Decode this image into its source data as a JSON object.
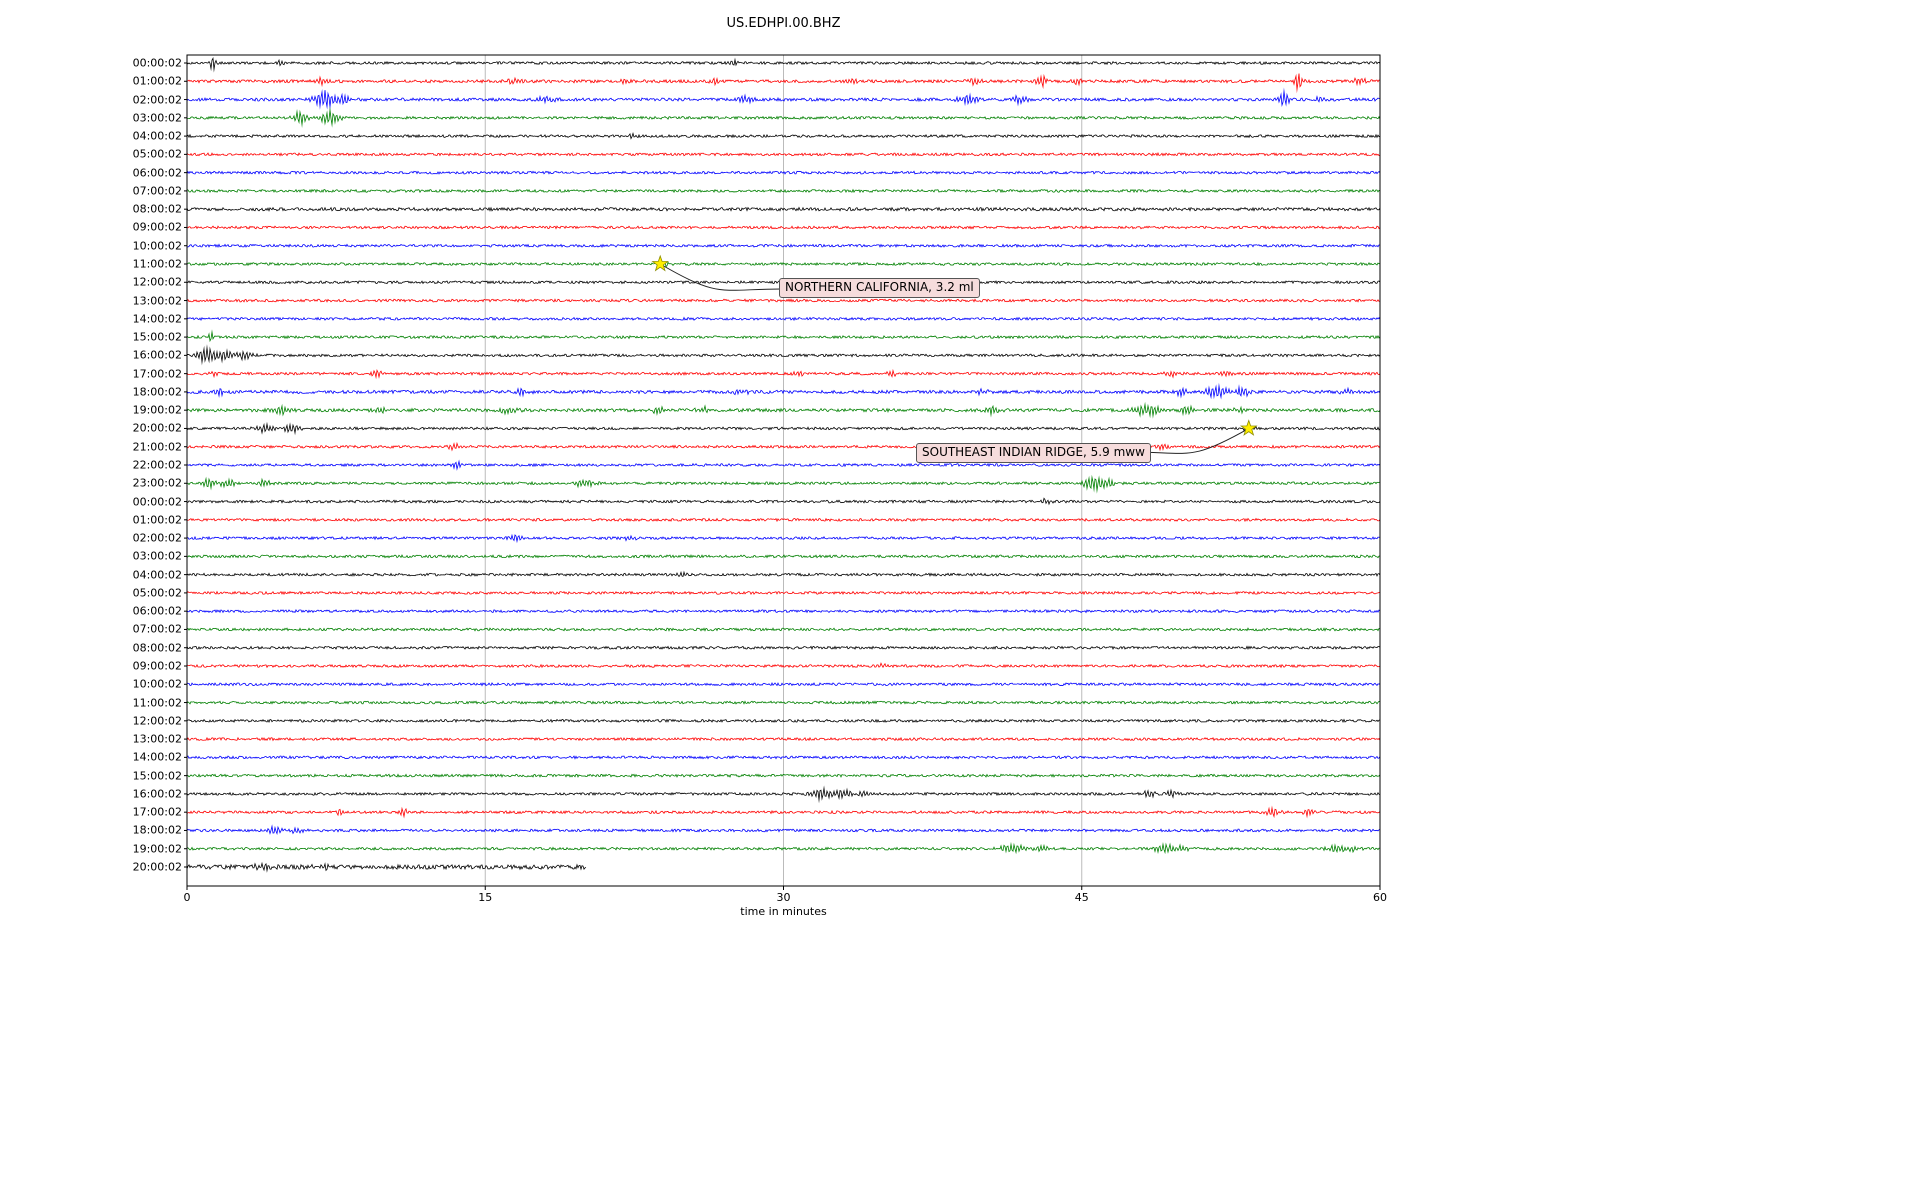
{
  "chart_data": {
    "type": "line",
    "title": "US.EDHPI.00.BHZ",
    "xlabel": "time in minutes",
    "xlim": [
      0,
      60
    ],
    "x_ticks": [
      0,
      15,
      30,
      45,
      60
    ],
    "grid": "on",
    "colors": {
      "trace_cycle": [
        "#000000",
        "#ff0000",
        "#0000ff",
        "#008000"
      ],
      "grid_line": "#bbbbbb",
      "axis_frame": "#000000",
      "star_fill": "#ffee00",
      "star_edge": "#8b8b00",
      "annotation_bg": "#f6dcdc",
      "annotation_border": "#555555"
    },
    "rows": [
      {
        "label": "00:00:02",
        "bursts": [
          [
            1.3,
            7,
            0.15
          ],
          [
            4.6,
            2.5,
            0.3
          ],
          [
            27.5,
            2.5,
            0.2
          ]
        ]
      },
      {
        "label": "01:00:02",
        "base": 1.5,
        "bursts": [
          [
            6.8,
            3,
            0.3
          ],
          [
            16.5,
            3,
            0.4
          ],
          [
            22.0,
            2.5,
            0.3
          ],
          [
            26.6,
            3,
            0.3
          ],
          [
            33.5,
            2.5,
            0.3
          ],
          [
            39.6,
            3.5,
            0.4
          ],
          [
            43.0,
            6,
            0.25
          ],
          [
            44.8,
            4,
            0.3
          ],
          [
            55.9,
            9,
            0.2
          ],
          [
            59.0,
            3,
            0.4
          ]
        ]
      },
      {
        "label": "02:00:02",
        "base": 1.5,
        "bursts": [
          [
            6.9,
            8,
            0.5
          ],
          [
            7.9,
            5,
            0.3
          ],
          [
            18.0,
            3,
            0.5
          ],
          [
            28.0,
            3.5,
            0.4
          ],
          [
            39.3,
            4,
            0.6
          ],
          [
            41.9,
            3.5,
            0.4
          ],
          [
            55.2,
            7,
            0.3
          ],
          [
            57.0,
            3,
            0.3
          ]
        ]
      },
      {
        "label": "03:00:02",
        "bursts": [
          [
            5.7,
            6,
            0.4
          ],
          [
            7.2,
            7,
            0.5
          ]
        ]
      },
      {
        "label": "04:00:02",
        "bursts": [
          [
            22.4,
            2.5,
            0.25
          ]
        ]
      },
      {
        "label": "05:00:02"
      },
      {
        "label": "06:00:02"
      },
      {
        "label": "07:00:02"
      },
      {
        "label": "08:00:02",
        "base": 1.6
      },
      {
        "label": "09:00:02"
      },
      {
        "label": "10:00:02"
      },
      {
        "label": "11:00:02",
        "bursts": [
          [
            24.0,
            2,
            0.3
          ]
        ]
      },
      {
        "label": "12:00:02"
      },
      {
        "label": "13:00:02"
      },
      {
        "label": "14:00:02"
      },
      {
        "label": "15:00:02",
        "bursts": [
          [
            1.2,
            6,
            0.12
          ]
        ]
      },
      {
        "label": "16:00:02",
        "bursts": [
          [
            1.0,
            7,
            0.5
          ],
          [
            1.9,
            5,
            0.4
          ],
          [
            2.9,
            4,
            0.4
          ]
        ]
      },
      {
        "label": "17:00:02",
        "bursts": [
          [
            1.3,
            3,
            0.2
          ],
          [
            9.5,
            4,
            0.3
          ],
          [
            30.8,
            2.5,
            0.3
          ],
          [
            35.5,
            2.5,
            0.3
          ],
          [
            49.5,
            3,
            0.3
          ],
          [
            52.3,
            3,
            0.3
          ]
        ]
      },
      {
        "label": "18:00:02",
        "base": 1.6,
        "bursts": [
          [
            1.6,
            3,
            0.3
          ],
          [
            16.8,
            3,
            0.4
          ],
          [
            27.8,
            2.5,
            0.4
          ],
          [
            40.0,
            3,
            0.4
          ],
          [
            50.0,
            3,
            0.4
          ],
          [
            51.8,
            5,
            0.6
          ],
          [
            53.1,
            4,
            0.4
          ],
          [
            58.3,
            3,
            0.3
          ]
        ]
      },
      {
        "label": "19:00:02",
        "base": 1.6,
        "bursts": [
          [
            4.8,
            4,
            0.5
          ],
          [
            9.7,
            3.5,
            0.4
          ],
          [
            16.2,
            3,
            0.5
          ],
          [
            23.8,
            3.5,
            0.4
          ],
          [
            26.0,
            3,
            0.4
          ],
          [
            40.5,
            4,
            0.4
          ],
          [
            48.3,
            6,
            0.7
          ],
          [
            50.3,
            4,
            0.4
          ],
          [
            53.0,
            3,
            0.3
          ]
        ]
      },
      {
        "label": "20:00:02",
        "bursts": [
          [
            3.9,
            4,
            0.5
          ],
          [
            5.3,
            4,
            0.4
          ],
          [
            53.4,
            2.5,
            0.4
          ]
        ]
      },
      {
        "label": "21:00:02",
        "bursts": [
          [
            13.5,
            3.5,
            0.3
          ],
          [
            49.0,
            3,
            0.3
          ]
        ]
      },
      {
        "label": "22:00:02",
        "bursts": [
          [
            13.6,
            3,
            0.25
          ]
        ]
      },
      {
        "label": "23:00:02",
        "bursts": [
          [
            1.1,
            4,
            0.4
          ],
          [
            2.1,
            4,
            0.4
          ],
          [
            3.9,
            3.5,
            0.3
          ],
          [
            20.0,
            4,
            0.5
          ],
          [
            45.6,
            7,
            0.5
          ],
          [
            46.4,
            4,
            0.3
          ]
        ]
      },
      {
        "label": "00:00:02",
        "bursts": [
          [
            43.2,
            3,
            0.25
          ]
        ]
      },
      {
        "label": "01:00:02"
      },
      {
        "label": "02:00:02",
        "bursts": [
          [
            16.6,
            3,
            0.4
          ],
          [
            22.3,
            2.5,
            0.3
          ]
        ]
      },
      {
        "label": "03:00:02"
      },
      {
        "label": "04:00:02",
        "bursts": [
          [
            24.9,
            2.5,
            0.25
          ]
        ]
      },
      {
        "label": "05:00:02"
      },
      {
        "label": "06:00:02"
      },
      {
        "label": "07:00:02"
      },
      {
        "label": "08:00:02"
      },
      {
        "label": "09:00:02",
        "bursts": [
          [
            35.0,
            2.5,
            0.2
          ]
        ]
      },
      {
        "label": "10:00:02"
      },
      {
        "label": "11:00:02"
      },
      {
        "label": "12:00:02"
      },
      {
        "label": "13:00:02"
      },
      {
        "label": "14:00:02"
      },
      {
        "label": "15:00:02"
      },
      {
        "label": "16:00:02",
        "bursts": [
          [
            31.9,
            6,
            0.5
          ],
          [
            33.0,
            4,
            0.4
          ],
          [
            34.1,
            3,
            0.3
          ],
          [
            48.4,
            3.5,
            0.3
          ],
          [
            49.5,
            3,
            0.3
          ]
        ]
      },
      {
        "label": "17:00:02",
        "bursts": [
          [
            7.7,
            3,
            0.25
          ],
          [
            10.9,
            3.5,
            0.25
          ],
          [
            54.6,
            3.5,
            0.4
          ],
          [
            56.4,
            3.5,
            0.3
          ]
        ]
      },
      {
        "label": "18:00:02",
        "bursts": [
          [
            4.4,
            3.5,
            0.5
          ],
          [
            5.6,
            3,
            0.4
          ]
        ]
      },
      {
        "label": "19:00:02",
        "bursts": [
          [
            41.5,
            4.5,
            0.6
          ],
          [
            43.0,
            3.5,
            0.4
          ],
          [
            49.2,
            5,
            0.5
          ],
          [
            50.1,
            3.5,
            0.3
          ],
          [
            57.8,
            3.5,
            0.5
          ],
          [
            58.7,
            3,
            0.3
          ]
        ]
      },
      {
        "label": "20:00:02",
        "base": 2.2,
        "end": 20.1,
        "bursts": [
          [
            3.8,
            3.5,
            0.5
          ],
          [
            6.8,
            3,
            0.4
          ]
        ]
      }
    ],
    "annotations": [
      {
        "label": "NORTHERN CALIFORNIA, 3.2 ml",
        "row": 11,
        "minute": 23.8
      },
      {
        "label": "SOUTHEAST INDIAN RIDGE, 5.9 mww",
        "row": 20,
        "minute": 53.4
      }
    ]
  }
}
